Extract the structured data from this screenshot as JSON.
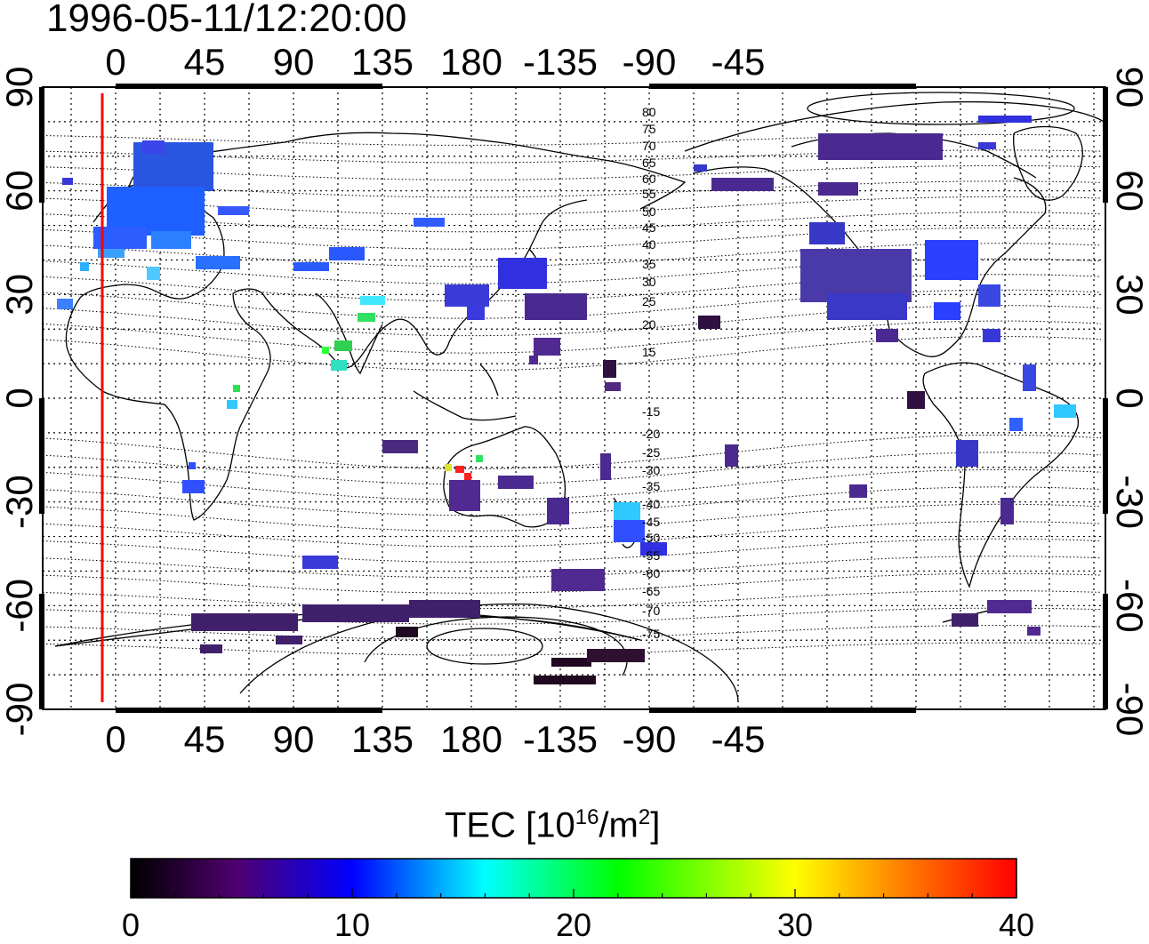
{
  "title": "1996-05-11/12:20:00",
  "map": {
    "top_lon_labels": [
      "0",
      "45",
      "90",
      "135",
      "180",
      "-135",
      "-90",
      "-45"
    ],
    "bottom_lon_labels": [
      "0",
      "45",
      "90",
      "135",
      "180",
      "-135",
      "-90",
      "-45"
    ],
    "left_lat_labels": [
      "90",
      "60",
      "30",
      "0",
      "-30",
      "-60",
      "-90"
    ],
    "right_lat_labels": [
      "90",
      "60",
      "30",
      "0",
      "-30",
      "-60",
      "-90"
    ],
    "magnetic_latitude_labels_north": [
      "80",
      "75",
      "70",
      "65",
      "60",
      "55",
      "50",
      "45",
      "40",
      "35",
      "30",
      "25",
      "20",
      "15"
    ],
    "magnetic_latitude_labels_south": [
      "-15",
      "-20",
      "-25",
      "-30",
      "-35",
      "-40",
      "-45",
      "-50",
      "-55",
      "-60",
      "-65",
      "-70",
      "-75"
    ],
    "sun_meridian_color": "#ff0000"
  },
  "colorbar": {
    "title_main": "TEC  [10",
    "title_exp": "16",
    "title_unit": "/m",
    "title_exp2": "2",
    "title_close": "]",
    "min": 0,
    "max": 40,
    "tick_labels": [
      "0",
      "10",
      "20",
      "30",
      "40"
    ],
    "stops": [
      "#000000",
      "#500070",
      "#0000ff",
      "#00ffff",
      "#00ff00",
      "#ffff00",
      "#ff8000",
      "#ff0000"
    ]
  }
}
